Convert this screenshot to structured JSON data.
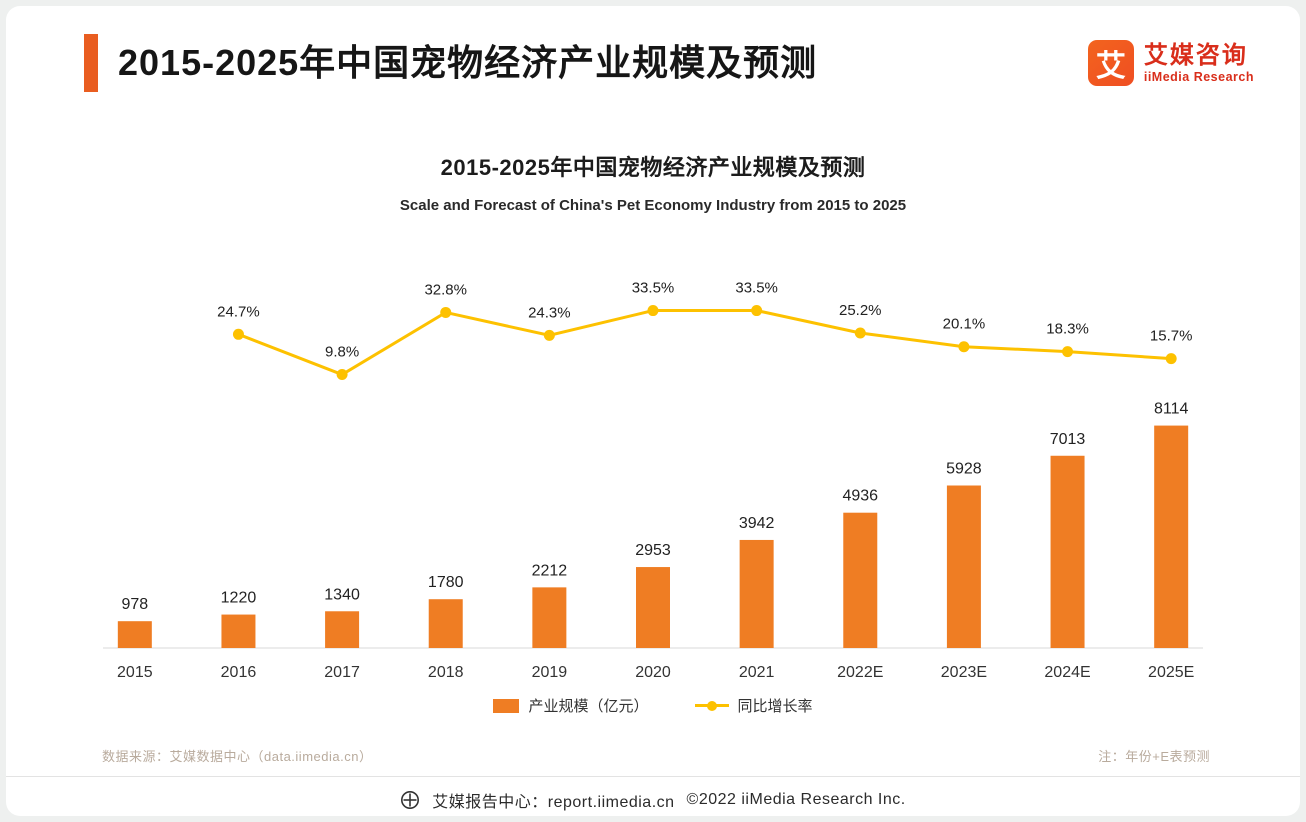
{
  "theme": {
    "accent_orange": "#e95d20",
    "bar_orange": "#ef7d23",
    "line_yellow": "#fdc100",
    "brand_red": "#d92e1b"
  },
  "page": {
    "header": {
      "title": "2015-2025年中国宠物经济产业规模及预测",
      "logo": {
        "mark": "艾",
        "name_cn": "艾媒咨询",
        "name_en": "iiMedia Research"
      }
    },
    "footer": {
      "source_note": "数据来源：艾媒数据中心（data.iimedia.cn）",
      "forecast_note": "注：年份+E表预测",
      "report_center": "艾媒报告中心：report.iimedia.cn",
      "copyright": "©2022  iiMedia Research Inc."
    }
  },
  "chart_data": {
    "type": "bar",
    "combo": "bar+line",
    "title": "2015-2025年中国宠物经济产业规模及预测",
    "subtitle": "Scale and Forecast of China's Pet Economy Industry from 2015 to 2025",
    "categories": [
      "2015",
      "2016",
      "2017",
      "2018",
      "2019",
      "2020",
      "2021",
      "2022E",
      "2023E",
      "2024E",
      "2025E"
    ],
    "series": [
      {
        "name": "产业规模（亿元）",
        "type": "bar",
        "color": "#ef7d23",
        "values": [
          978,
          1220,
          1340,
          1780,
          2212,
          2953,
          3942,
          4936,
          5928,
          7013,
          8114
        ]
      },
      {
        "name": "同比增长率",
        "type": "line",
        "color": "#fdc100",
        "unit": "%",
        "values": [
          null,
          24.7,
          9.8,
          32.8,
          24.3,
          33.5,
          33.5,
          25.2,
          20.1,
          18.3,
          15.7
        ]
      }
    ],
    "ylim_bar": [
      0,
      8500
    ],
    "ylim_line_pct": [
      0,
      40
    ],
    "grid": false,
    "legend_position": "bottom",
    "note": "年份+E表预测"
  }
}
